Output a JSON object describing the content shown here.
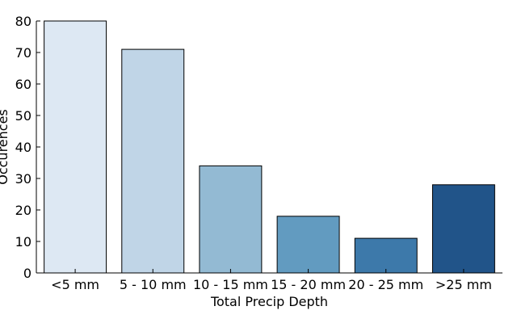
{
  "chart_data": {
    "type": "bar",
    "categories": [
      "<5 mm",
      "5 - 10 mm",
      "10 - 15 mm",
      "15 - 20 mm",
      "20 - 25 mm",
      ">25 mm"
    ],
    "values": [
      80,
      71,
      34,
      18,
      11,
      28
    ],
    "colors": [
      "#dde8f3",
      "#c0d5e7",
      "#93bad3",
      "#629bc0",
      "#3d79aa",
      "#215489"
    ],
    "title": "",
    "xlabel": "Total Precip Depth",
    "ylabel": "Occurences",
    "ylim": [
      0,
      80
    ],
    "yticks": [
      0,
      10,
      20,
      30,
      40,
      50,
      60,
      70,
      80
    ],
    "grid": false,
    "legend": "none"
  }
}
